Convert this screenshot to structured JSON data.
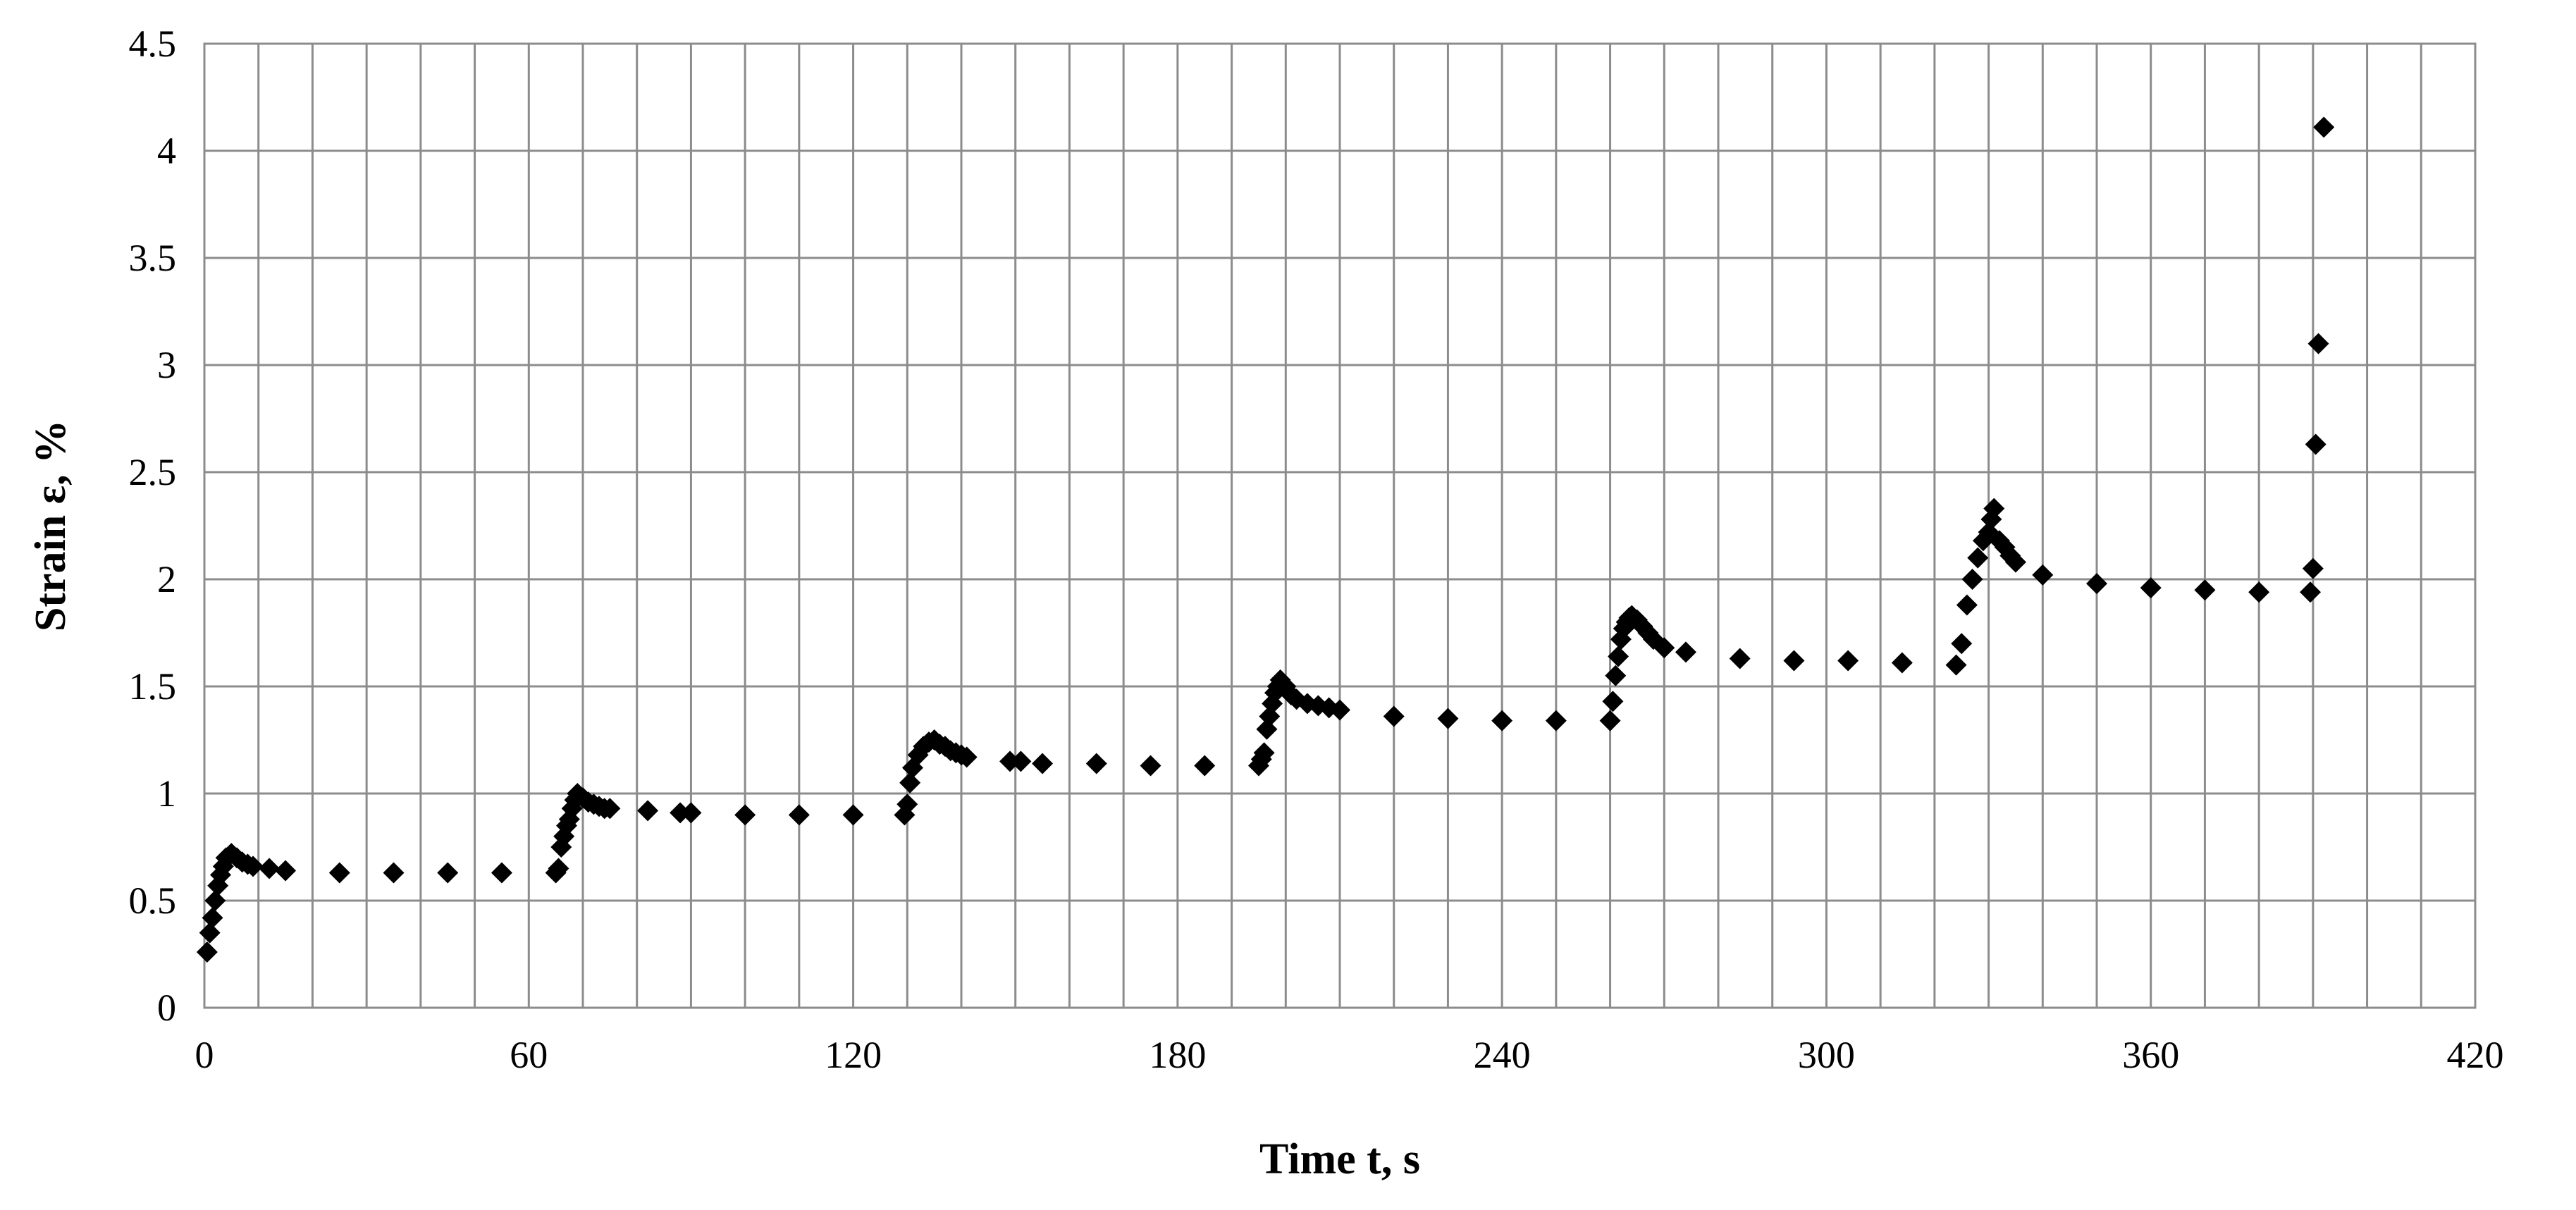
{
  "chart_data": {
    "type": "scatter",
    "title": "",
    "xlabel": "Time t, s",
    "ylabel": "Strain ε, %",
    "xlim": [
      0,
      420
    ],
    "ylim": [
      0,
      4.5
    ],
    "x_ticks": [
      "0",
      "60",
      "120",
      "180",
      "240",
      "300",
      "360",
      "420"
    ],
    "y_ticks": [
      "0",
      "0.5",
      "1",
      "1.5",
      "2",
      "2.5",
      "3",
      "3.5",
      "4",
      "4.5"
    ],
    "grid": true,
    "legend": "none",
    "marker": "diamond",
    "marker_color": "#000000",
    "series": [
      {
        "x": [
          0.5,
          1,
          1.5,
          2,
          2.5,
          3,
          3.5,
          4,
          5,
          6,
          7,
          8,
          9,
          12,
          15,
          25,
          35,
          45,
          55,
          65,
          65.5,
          66,
          66.5,
          67,
          67.5,
          68,
          68.5,
          69,
          70,
          71,
          72,
          73,
          74,
          75,
          82,
          88,
          90,
          100,
          110,
          120,
          129.5,
          130,
          130.5,
          131,
          132,
          133,
          134,
          135,
          136,
          137,
          138,
          139,
          140,
          141,
          149,
          151,
          155,
          165,
          175,
          185,
          195,
          195.5,
          196,
          196.5,
          197,
          197.5,
          198,
          198.5,
          199,
          200,
          201,
          202,
          204,
          206,
          208,
          210,
          220,
          230,
          240,
          250,
          260,
          260.5,
          261,
          261.5,
          262,
          262.5,
          263,
          263.5,
          264,
          265,
          266,
          267,
          268,
          270,
          274,
          284,
          294,
          304,
          314,
          324,
          325,
          326,
          327,
          328,
          329,
          330,
          330.5,
          331,
          332,
          333,
          334,
          335,
          340,
          350,
          360,
          370,
          380,
          389.5,
          390,
          390.5,
          391,
          392
        ],
        "y": [
          0.26,
          0.35,
          0.42,
          0.5,
          0.57,
          0.62,
          0.66,
          0.7,
          0.72,
          0.7,
          0.68,
          0.67,
          0.66,
          0.65,
          0.64,
          0.63,
          0.63,
          0.63,
          0.63,
          0.63,
          0.65,
          0.75,
          0.8,
          0.85,
          0.88,
          0.93,
          0.97,
          1.0,
          0.98,
          0.96,
          0.95,
          0.94,
          0.93,
          0.93,
          0.92,
          0.91,
          0.91,
          0.9,
          0.9,
          0.9,
          0.9,
          0.95,
          1.05,
          1.12,
          1.18,
          1.22,
          1.24,
          1.25,
          1.23,
          1.22,
          1.2,
          1.19,
          1.18,
          1.17,
          1.15,
          1.15,
          1.14,
          1.14,
          1.13,
          1.13,
          1.13,
          1.16,
          1.19,
          1.3,
          1.36,
          1.42,
          1.47,
          1.5,
          1.53,
          1.5,
          1.46,
          1.44,
          1.42,
          1.41,
          1.4,
          1.39,
          1.36,
          1.35,
          1.34,
          1.34,
          1.34,
          1.43,
          1.55,
          1.64,
          1.72,
          1.77,
          1.8,
          1.82,
          1.83,
          1.81,
          1.78,
          1.75,
          1.72,
          1.68,
          1.66,
          1.63,
          1.62,
          1.62,
          1.61,
          1.6,
          1.7,
          1.88,
          2.0,
          2.1,
          2.18,
          2.22,
          2.28,
          2.33,
          2.18,
          2.15,
          2.11,
          2.08,
          2.02,
          1.98,
          1.96,
          1.95,
          1.94,
          1.94,
          2.05,
          2.63,
          3.1,
          4.11
        ]
      }
    ]
  }
}
